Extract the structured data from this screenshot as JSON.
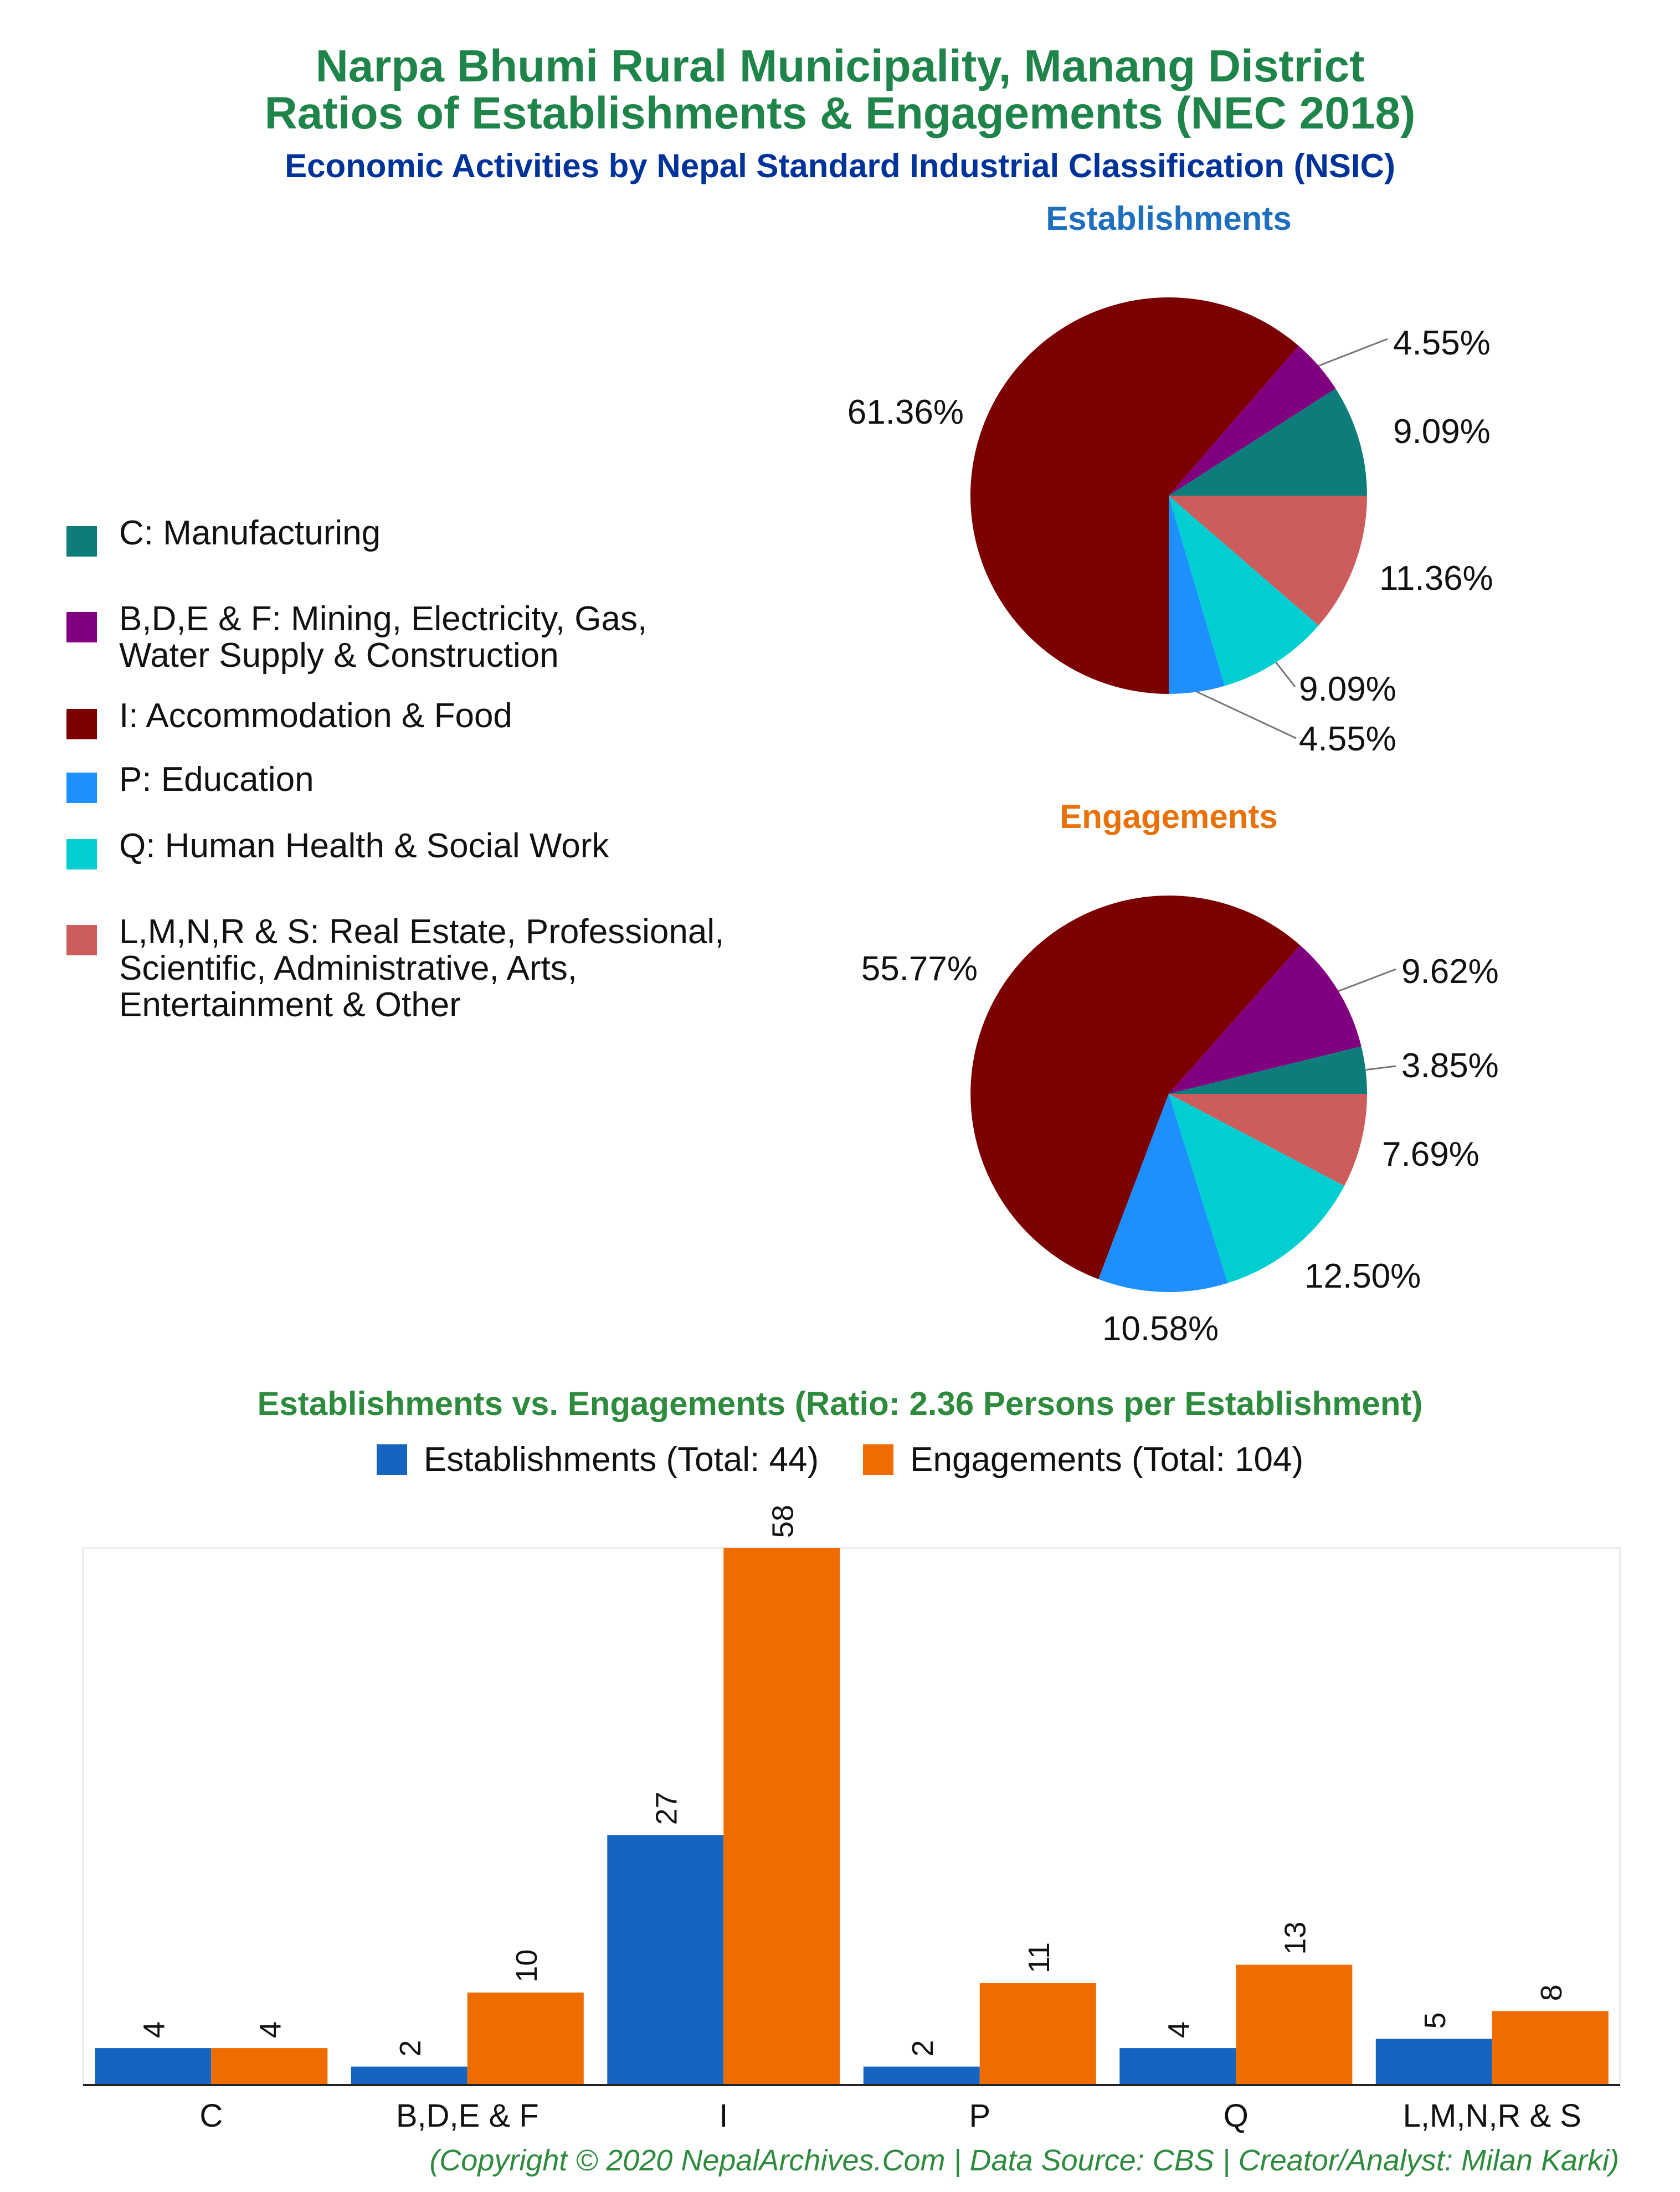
{
  "titles": {
    "main_line1": "Narpa Bhumi Rural Municipality, Manang District",
    "main_line2": "Ratios of Establishments & Engagements (NEC 2018)",
    "subtitle": "Economic Activities by Nepal Standard Industrial Classification (NSIC)",
    "establishments": "Establishments",
    "engagements": "Engagements",
    "bar_chart": "Establishments vs. Engagements (Ratio: 2.36 Persons per Establishment)",
    "footer": "(Copyright © 2020 NepalArchives.Com | Data Source: CBS | Creator/Analyst: Milan Karki)"
  },
  "legend": [
    {
      "label": "C: Manufacturing",
      "color": "#0e7c7b"
    },
    {
      "label": "B,D,E & F: Mining, Electricity, Gas,\nWater Supply & Construction",
      "color": "#800080"
    },
    {
      "label": "I: Accommodation & Food",
      "color": "#7b0000"
    },
    {
      "label": "P: Education",
      "color": "#1e8fff"
    },
    {
      "label": "Q: Human Health & Social Work",
      "color": "#00ced1"
    },
    {
      "label": "L,M,N,R & S: Real Estate, Professional,\nScientific, Administrative, Arts,\nEntertainment & Other",
      "color": "#cd5c5c"
    }
  ],
  "chart_data": [
    {
      "type": "pie",
      "title": "Establishments",
      "slices": [
        {
          "category": "C",
          "value": 9.09,
          "label": "9.09%",
          "color": "#0e7c7b"
        },
        {
          "category": "B,D,E & F",
          "value": 4.55,
          "label": "4.55%",
          "color": "#800080"
        },
        {
          "category": "I",
          "value": 61.36,
          "label": "61.36%",
          "color": "#7b0000"
        },
        {
          "category": "P",
          "value": 4.55,
          "label": "4.55%",
          "color": "#1e8fff"
        },
        {
          "category": "Q",
          "value": 9.09,
          "label": "9.09%",
          "color": "#00ced1"
        },
        {
          "category": "L,M,N,R & S",
          "value": 11.36,
          "label": "11.36%",
          "color": "#cd5c5c"
        }
      ]
    },
    {
      "type": "pie",
      "title": "Engagements",
      "slices": [
        {
          "category": "C",
          "value": 3.85,
          "label": "3.85%",
          "color": "#0e7c7b"
        },
        {
          "category": "B,D,E & F",
          "value": 9.62,
          "label": "9.62%",
          "color": "#800080"
        },
        {
          "category": "I",
          "value": 55.77,
          "label": "55.77%",
          "color": "#7b0000"
        },
        {
          "category": "P",
          "value": 10.58,
          "label": "10.58%",
          "color": "#1e8fff"
        },
        {
          "category": "Q",
          "value": 12.5,
          "label": "12.50%",
          "color": "#00ced1"
        },
        {
          "category": "L,M,N,R & S",
          "value": 7.69,
          "label": "7.69%",
          "color": "#cd5c5c"
        }
      ]
    },
    {
      "type": "bar",
      "title": "Establishments vs. Engagements (Ratio: 2.36 Persons per Establishment)",
      "categories": [
        "C",
        "B,D,E & F",
        "I",
        "P",
        "Q",
        "L,M,N,R & S"
      ],
      "series": [
        {
          "name": "Establishments (Total: 44)",
          "color": "#1565c0",
          "values": [
            4,
            2,
            27,
            2,
            4,
            5
          ]
        },
        {
          "name": "Engagements (Total: 104)",
          "color": "#ef6c00",
          "values": [
            4,
            10,
            58,
            11,
            13,
            8
          ]
        }
      ],
      "ylim": [
        0,
        58
      ],
      "grid": false
    }
  ]
}
